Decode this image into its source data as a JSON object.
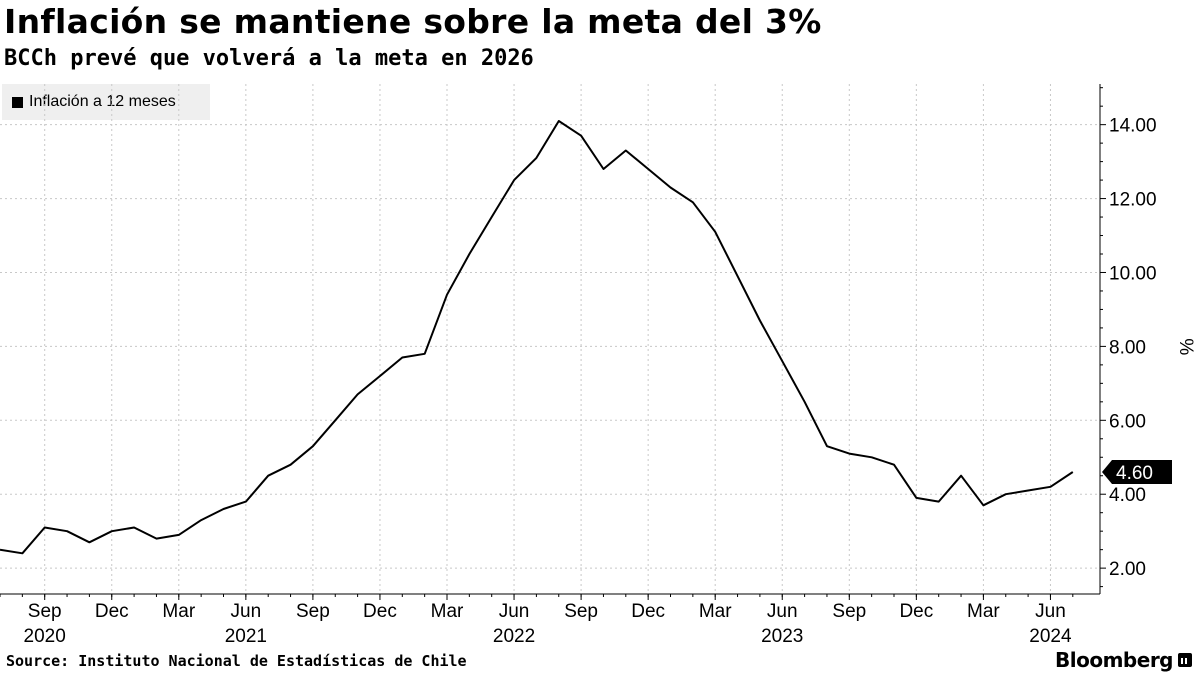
{
  "header": {
    "title": "Inflación se mantiene sobre la meta del 3%",
    "subtitle": "BCCh prevé que volverá a la meta en 2026"
  },
  "legend": {
    "label": "Inflación a 12 meses"
  },
  "footer": {
    "source": "Source: Instituto Nacional de Estadísticas de Chile",
    "brand": "Bloomberg"
  },
  "colors": {
    "line": "#000000",
    "grid": "#c8c8c8",
    "legend_bg": "#efefef",
    "label_bg": "#000000"
  },
  "chart_data": {
    "type": "line",
    "title": "Inflación se mantiene sobre la meta del 3%",
    "subtitle": "BCCh prevé que volverá a la meta en 2026",
    "xlabel": "",
    "ylabel": "%",
    "ylim": [
      1.3,
      15.1
    ],
    "yticks": [
      2,
      4,
      6,
      8,
      10,
      12,
      14
    ],
    "y_tick_labels": [
      "2.00",
      "4.00",
      "6.00",
      "8.00",
      "10.00",
      "12.00",
      "14.00"
    ],
    "y_axis_side": "right",
    "grid": "dotted",
    "legend_position": "top-left",
    "x_ticks": [
      {
        "date": "2020-09",
        "month": "Sep",
        "year": "2020"
      },
      {
        "date": "2020-12",
        "month": "Dec",
        "year": ""
      },
      {
        "date": "2021-03",
        "month": "Mar",
        "year": ""
      },
      {
        "date": "2021-06",
        "month": "Jun",
        "year": "2021"
      },
      {
        "date": "2021-09",
        "month": "Sep",
        "year": ""
      },
      {
        "date": "2021-12",
        "month": "Dec",
        "year": ""
      },
      {
        "date": "2022-03",
        "month": "Mar",
        "year": ""
      },
      {
        "date": "2022-06",
        "month": "Jun",
        "year": "2022"
      },
      {
        "date": "2022-09",
        "month": "Sep",
        "year": ""
      },
      {
        "date": "2022-12",
        "month": "Dec",
        "year": ""
      },
      {
        "date": "2023-03",
        "month": "Mar",
        "year": ""
      },
      {
        "date": "2023-06",
        "month": "Jun",
        "year": "2023"
      },
      {
        "date": "2023-09",
        "month": "Sep",
        "year": ""
      },
      {
        "date": "2023-12",
        "month": "Dec",
        "year": ""
      },
      {
        "date": "2024-03",
        "month": "Mar",
        "year": ""
      },
      {
        "date": "2024-06",
        "month": "Jun",
        "year": "2024"
      }
    ],
    "last_value_label": "4.60",
    "series": [
      {
        "name": "Inflación a 12 meses",
        "x": [
          "2020-07",
          "2020-08",
          "2020-09",
          "2020-10",
          "2020-11",
          "2020-12",
          "2021-01",
          "2021-02",
          "2021-03",
          "2021-04",
          "2021-05",
          "2021-06",
          "2021-07",
          "2021-08",
          "2021-09",
          "2021-10",
          "2021-11",
          "2021-12",
          "2022-01",
          "2022-02",
          "2022-03",
          "2022-04",
          "2022-05",
          "2022-06",
          "2022-07",
          "2022-08",
          "2022-09",
          "2022-10",
          "2022-11",
          "2022-12",
          "2023-01",
          "2023-02",
          "2023-03",
          "2023-04",
          "2023-05",
          "2023-06",
          "2023-07",
          "2023-08",
          "2023-09",
          "2023-10",
          "2023-11",
          "2023-12",
          "2024-01",
          "2024-02",
          "2024-03",
          "2024-04",
          "2024-05",
          "2024-06",
          "2024-07"
        ],
        "values": [
          2.5,
          2.4,
          3.1,
          3.0,
          2.7,
          3.0,
          3.1,
          2.8,
          2.9,
          3.3,
          3.6,
          3.8,
          4.5,
          4.8,
          5.3,
          6.0,
          6.7,
          7.2,
          7.7,
          7.8,
          9.4,
          10.5,
          11.5,
          12.5,
          13.1,
          14.1,
          13.7,
          12.8,
          13.3,
          12.8,
          12.3,
          11.9,
          11.1,
          9.9,
          8.7,
          7.6,
          6.5,
          5.3,
          5.1,
          5.0,
          4.8,
          3.9,
          3.8,
          4.5,
          3.7,
          4.0,
          4.1,
          4.2,
          4.6
        ]
      }
    ]
  }
}
